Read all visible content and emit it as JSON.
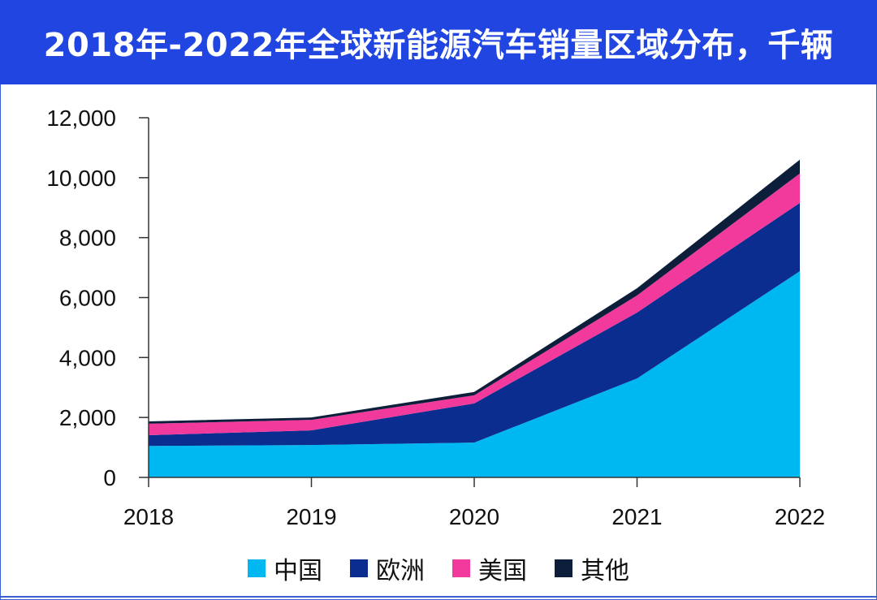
{
  "title": "2018年-2022年全球新能源汽车销量区域分布，千辆",
  "chart_data": {
    "type": "area",
    "stacked": true,
    "title": "2018年-2022年全球新能源汽车销量区域分布，千辆",
    "xlabel": "",
    "ylabel": "",
    "x": [
      "2018",
      "2019",
      "2020",
      "2021",
      "2022"
    ],
    "ylim": [
      0,
      12000
    ],
    "yticks": [
      0,
      2000,
      4000,
      6000,
      8000,
      10000,
      12000
    ],
    "ytick_labels": [
      "0",
      "2,000",
      "4,000",
      "6,000",
      "8,000",
      "10,000",
      "12,000"
    ],
    "grid": false,
    "legend_position": "bottom",
    "series": [
      {
        "name": "中国",
        "color": "#00b8f1",
        "values": [
          1050,
          1080,
          1160,
          3300,
          6880
        ]
      },
      {
        "name": "欧洲",
        "color": "#0a2d8f",
        "values": [
          360,
          490,
          1310,
          2200,
          2280
        ]
      },
      {
        "name": "美国",
        "color": "#f23a9c",
        "values": [
          380,
          350,
          270,
          570,
          980
        ]
      },
      {
        "name": "其他",
        "color": "#0d1e3a",
        "values": [
          80,
          80,
          110,
          240,
          460
        ]
      }
    ]
  }
}
